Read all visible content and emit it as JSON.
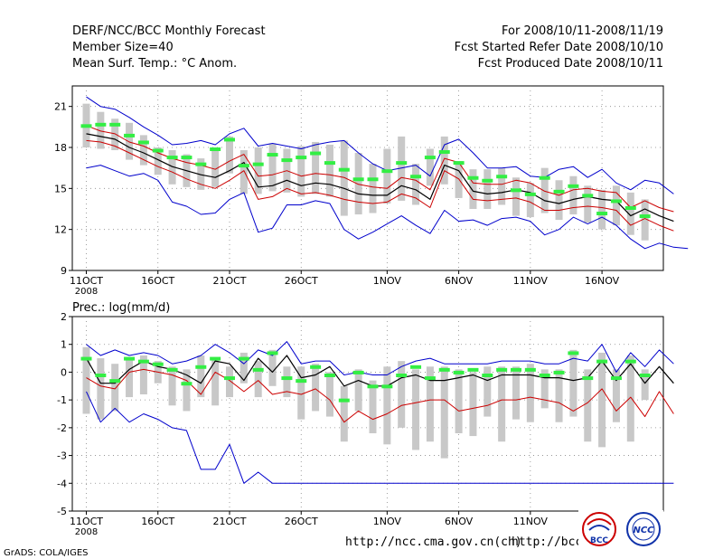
{
  "header": {
    "title": "DERF/NCC/BCC Monthly Forecast",
    "member_size": "Member Size=40",
    "variable": "Mean Surf. Temp.: °C Anom.",
    "period": "For 2008/10/11-2008/11/19",
    "fcst_started": "Fcst Started Refer Date 2008/10/10",
    "fcst_produced": "Fcst Produced Date 2008/10/11"
  },
  "footer": {
    "grads_credit": "GrADS: COLA/IGES",
    "url1": "http://ncc.cma.gov.cn(ch)",
    "url2": "http://bcc.cma.gov.cn",
    "logo_bcc_text": "BCC",
    "logo_ncc_text": "NCC"
  },
  "colors": {
    "envelope": "#0000cc",
    "ensemble": "#cc0000",
    "mean": "#000000",
    "box": "#c8c8c8",
    "marker": "#33ee44"
  },
  "chart_data": [
    {
      "type": "line",
      "title": "Mean Surf. Temp.: °C Anom.",
      "xlabel": "",
      "ylabel": "",
      "x_days": 40,
      "xticks": [
        {
          "day": 0,
          "label": "11OCT"
        },
        {
          "day": 5,
          "label": "16OCT"
        },
        {
          "day": 10,
          "label": "21OCT"
        },
        {
          "day": 15,
          "label": "26OCT"
        },
        {
          "day": 21,
          "label": "1NOV"
        },
        {
          "day": 26,
          "label": "6NOV"
        },
        {
          "day": 31,
          "label": "11NOV"
        },
        {
          "day": 36,
          "label": "16NOV"
        }
      ],
      "year_label": "2008",
      "ylim": [
        9,
        22.5
      ],
      "yticks": [
        9,
        12,
        15,
        18,
        21
      ],
      "series": [
        {
          "name": "max",
          "values": [
            21.7,
            21.0,
            20.8,
            20.2,
            19.5,
            18.9,
            18.2,
            18.3,
            18.5,
            18.2,
            19.0,
            19.4,
            18.1,
            18.3,
            18.1,
            17.9,
            18.2,
            18.4,
            18.5,
            17.6,
            16.8,
            16.3,
            16.5,
            16.7,
            15.9,
            18.2,
            18.6,
            17.6,
            16.5,
            16.5,
            16.6,
            15.9,
            15.8,
            16.4,
            16.6,
            15.8,
            16.4,
            15.4,
            14.9,
            15.6,
            15.4,
            14.6
          ]
        },
        {
          "name": "upper",
          "values": [
            19.6,
            19.2,
            19.0,
            18.4,
            18.1,
            17.6,
            17.2,
            16.9,
            16.7,
            16.4,
            17.0,
            17.5,
            15.9,
            16.0,
            16.3,
            15.9,
            16.1,
            16.0,
            15.8,
            15.3,
            15.1,
            15.0,
            15.8,
            15.6,
            14.9,
            17.2,
            16.9,
            15.4,
            15.3,
            15.3,
            15.6,
            15.4,
            14.8,
            14.5,
            14.9,
            15.0,
            14.8,
            14.7,
            13.6,
            14.1,
            13.6,
            13.3
          ]
        },
        {
          "name": "mean",
          "values": [
            19.0,
            18.8,
            18.6,
            18.0,
            17.6,
            17.1,
            16.6,
            16.3,
            16.0,
            15.8,
            16.3,
            16.9,
            15.1,
            15.2,
            15.6,
            15.2,
            15.4,
            15.3,
            15.0,
            14.6,
            14.5,
            14.5,
            15.2,
            14.9,
            14.2,
            16.7,
            16.3,
            14.8,
            14.6,
            14.7,
            14.9,
            14.7,
            14.1,
            13.9,
            14.2,
            14.4,
            14.2,
            14.1,
            13.0,
            13.5,
            13.0,
            12.6
          ]
        },
        {
          "name": "lower",
          "values": [
            18.5,
            18.4,
            18.1,
            17.6,
            17.1,
            16.6,
            16.2,
            15.7,
            15.3,
            15.0,
            15.6,
            16.3,
            14.2,
            14.4,
            15.0,
            14.6,
            14.7,
            14.5,
            14.2,
            14.0,
            13.9,
            14.0,
            14.6,
            14.3,
            13.6,
            16.3,
            15.7,
            14.2,
            14.1,
            14.2,
            14.3,
            14.0,
            13.4,
            13.4,
            13.6,
            13.7,
            13.6,
            13.4,
            12.3,
            12.8,
            12.3,
            11.9
          ]
        },
        {
          "name": "min",
          "values": [
            16.5,
            16.7,
            16.3,
            15.9,
            16.1,
            15.6,
            14.0,
            13.7,
            13.1,
            13.2,
            14.2,
            14.7,
            11.8,
            12.1,
            13.8,
            13.8,
            14.1,
            13.9,
            12.0,
            11.3,
            11.8,
            12.4,
            13.0,
            12.3,
            11.7,
            13.4,
            12.6,
            12.7,
            12.3,
            12.8,
            12.9,
            12.6,
            11.6,
            12.0,
            12.9,
            12.4,
            12.9,
            12.3,
            11.3,
            10.6,
            11.0,
            10.7,
            10.6
          ]
        },
        {
          "name": "marker",
          "values": [
            19.6,
            19.7,
            19.7,
            18.9,
            18.4,
            17.8,
            17.3,
            17.3,
            16.8,
            17.9,
            18.6,
            16.7,
            16.8,
            17.5,
            17.1,
            17.3,
            17.6,
            16.9,
            16.4,
            15.7,
            15.7,
            16.3,
            16.9,
            15.9,
            17.3,
            17.7,
            16.9,
            15.8,
            15.6,
            15.9,
            14.9,
            14.6,
            15.8,
            14.8,
            15.2,
            14.5,
            13.2,
            14.1,
            13.6,
            13.0
          ]
        },
        {
          "name": "box_hi",
          "values": [
            21.2,
            20.6,
            20.1,
            19.8,
            18.9,
            18.0,
            17.8,
            17.5,
            17.2,
            17.8,
            18.8,
            17.8,
            18.0,
            18.3,
            17.9,
            18.1,
            18.4,
            18.2,
            18.5,
            17.6,
            16.8,
            17.9,
            18.8,
            16.8,
            17.9,
            18.8,
            17.0,
            16.4,
            16.4,
            16.5,
            15.8,
            15.4,
            16.5,
            15.6,
            15.9,
            15.2,
            14.9,
            15.2,
            14.7,
            14.2
          ]
        },
        {
          "name": "box_lo",
          "values": [
            18.0,
            17.9,
            17.8,
            17.1,
            16.7,
            16.0,
            15.3,
            15.1,
            14.9,
            15.1,
            16.1,
            14.6,
            14.6,
            14.8,
            14.7,
            14.4,
            14.6,
            14.4,
            13.0,
            13.1,
            13.2,
            13.9,
            14.1,
            13.8,
            15.2,
            15.3,
            14.3,
            13.5,
            13.5,
            13.8,
            13.0,
            12.9,
            13.2,
            12.7,
            13.1,
            12.5,
            12.0,
            12.3,
            11.6,
            11.2
          ]
        }
      ]
    },
    {
      "type": "line",
      "title": "Prec.: log(mm/d)",
      "xlabel": "",
      "ylabel": "",
      "x_days": 40,
      "xticks": [
        {
          "day": 0,
          "label": "11OCT"
        },
        {
          "day": 5,
          "label": "16OCT"
        },
        {
          "day": 10,
          "label": "21OCT"
        },
        {
          "day": 15,
          "label": "26OCT"
        },
        {
          "day": 21,
          "label": "1NOV"
        },
        {
          "day": 26,
          "label": "6NOV"
        },
        {
          "day": 31,
          "label": "11NOV"
        }
      ],
      "year_label": "2008",
      "ylim": [
        -5,
        2
      ],
      "yticks": [
        -5,
        -4,
        -3,
        -2,
        -1,
        0,
        1,
        2
      ],
      "series": [
        {
          "name": "max",
          "values": [
            1.0,
            0.6,
            0.8,
            0.6,
            0.7,
            0.6,
            0.3,
            0.4,
            0.6,
            1.0,
            0.7,
            0.3,
            0.8,
            0.6,
            1.1,
            0.3,
            0.4,
            0.4,
            -0.1,
            0.0,
            -0.1,
            -0.1,
            0.2,
            0.4,
            0.5,
            0.3,
            0.3,
            0.3,
            0.3,
            0.4,
            0.4,
            0.4,
            0.3,
            0.3,
            0.5,
            0.4,
            1.0,
            0.0,
            0.7,
            0.2,
            0.8,
            0.3
          ]
        },
        {
          "name": "mean",
          "values": [
            0.5,
            -0.4,
            -0.4,
            0.1,
            0.4,
            0.2,
            0.1,
            -0.1,
            -0.4,
            0.4,
            0.3,
            -0.3,
            0.5,
            0.0,
            0.6,
            -0.2,
            -0.1,
            0.2,
            -0.5,
            -0.3,
            -0.5,
            -0.5,
            -0.2,
            -0.1,
            -0.3,
            -0.3,
            -0.2,
            -0.1,
            -0.3,
            -0.1,
            -0.1,
            -0.1,
            -0.2,
            -0.2,
            -0.3,
            -0.2,
            0.4,
            -0.3,
            0.3,
            -0.4,
            0.2,
            -0.4
          ]
        },
        {
          "name": "lower",
          "values": [
            -0.2,
            -0.5,
            -0.6,
            0.0,
            0.1,
            0.0,
            -0.1,
            -0.3,
            -0.8,
            0.0,
            -0.3,
            -0.7,
            -0.3,
            -0.8,
            -0.7,
            -0.8,
            -0.6,
            -1.0,
            -1.8,
            -1.4,
            -1.7,
            -1.5,
            -1.2,
            -1.1,
            -1.0,
            -1.0,
            -1.4,
            -1.3,
            -1.2,
            -1.0,
            -1.0,
            -0.9,
            -1.0,
            -1.1,
            -1.4,
            -1.1,
            -0.6,
            -1.4,
            -0.9,
            -1.6,
            -0.7,
            -1.5
          ]
        },
        {
          "name": "min",
          "values": [
            -0.7,
            -1.8,
            -1.3,
            -1.8,
            -1.5,
            -1.7,
            -2.0,
            -2.1,
            -3.5,
            -3.5,
            -2.6,
            -4.0,
            -3.6,
            -4.0,
            -4.0,
            -4.0,
            -4.0,
            -4.0,
            -4.0,
            -4.0,
            -4.0,
            -4.0,
            -4.0,
            -4.0,
            -4.0,
            -4.0,
            -4.0,
            -4.0,
            -4.0,
            -4.0,
            -4.0,
            -4.0,
            -4.0,
            -4.0,
            -4.0,
            -4.0,
            -4.0,
            -4.0,
            -4.0,
            -4.0,
            -4.0,
            -4.0
          ]
        },
        {
          "name": "marker",
          "values": [
            0.5,
            -0.1,
            -0.3,
            0.5,
            0.4,
            0.3,
            0.1,
            -0.4,
            0.2,
            0.5,
            -0.2,
            0.5,
            0.1,
            0.7,
            -0.2,
            -0.3,
            0.2,
            -0.1,
            -1.0,
            0.0,
            -0.5,
            -0.5,
            -0.1,
            0.2,
            -0.2,
            0.1,
            0.0,
            0.1,
            -0.1,
            0.1,
            0.1,
            0.1,
            -0.1,
            0.0,
            0.7,
            -0.2,
            0.4,
            -0.2,
            0.4,
            -0.1
          ]
        },
        {
          "name": "box_hi",
          "values": [
            0.9,
            0.5,
            0.3,
            0.5,
            0.6,
            0.4,
            0.2,
            0.1,
            0.6,
            0.5,
            0.2,
            0.7,
            0.4,
            0.8,
            0.2,
            0.2,
            0.3,
            0.0,
            -0.5,
            0.1,
            -0.3,
            0.2,
            0.4,
            0.1,
            0.2,
            0.2,
            0.1,
            0.0,
            0.2,
            0.2,
            0.2,
            0.3,
            0.1,
            0.1,
            0.8,
            0.1,
            0.7,
            0.1,
            0.6,
            0.1
          ]
        },
        {
          "name": "box_lo",
          "values": [
            -1.5,
            -1.7,
            -1.4,
            -0.9,
            -0.8,
            -0.4,
            -1.2,
            -1.4,
            -0.9,
            -1.2,
            -0.9,
            -0.4,
            -0.9,
            -0.5,
            -0.9,
            -1.7,
            -1.4,
            -1.6,
            -2.5,
            -1.4,
            -2.2,
            -2.6,
            -2.0,
            -2.8,
            -2.5,
            -3.1,
            -2.2,
            -2.3,
            -1.6,
            -2.5,
            -1.7,
            -1.8,
            -1.3,
            -1.8,
            -1.6,
            -2.5,
            -2.7,
            -1.8,
            -2.5,
            -1.0
          ]
        }
      ]
    }
  ]
}
